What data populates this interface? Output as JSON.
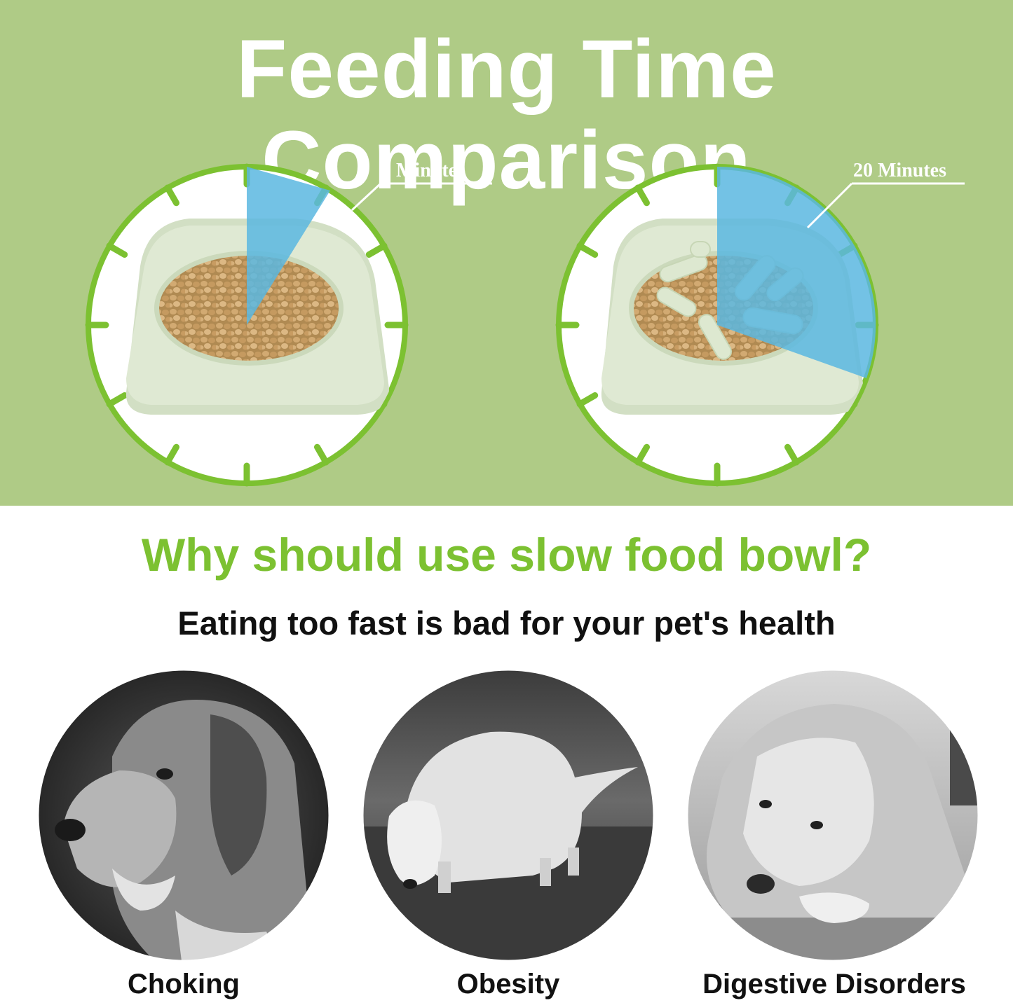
{
  "header": {
    "title": "Feeding Time Comparison"
  },
  "comparison": {
    "regular_bowl": {
      "time_label": "5 Minutes"
    },
    "slow_bowl": {
      "time_label": "20 Minutes"
    }
  },
  "question": {
    "title": "Why should use slow food bowl?",
    "subtitle": "Eating too fast is bad for your pet's health"
  },
  "risks": [
    {
      "label": "Choking"
    },
    {
      "label": "Obesity"
    },
    {
      "label": "Digestive Disorders"
    }
  ],
  "colors": {
    "panel_green": "#afcb86",
    "ring_green": "#7cc131",
    "sector_blue": "#5ab7e0",
    "heading_green": "#7cc131"
  }
}
